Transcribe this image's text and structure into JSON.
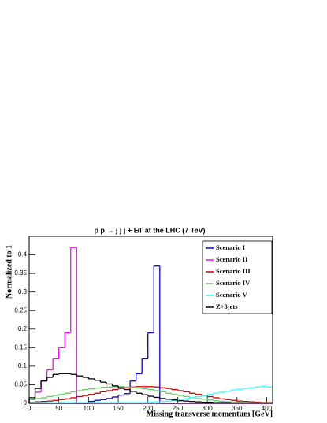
{
  "chart_data": {
    "type": "histogram",
    "title": "p p → j j j + E̸T at the LHC (7 TeV)",
    "x_label": "Missing transverse momentum [GeV]",
    "y_label": "Normalized to 1",
    "bins": [
      0,
      10,
      20,
      30,
      40,
      50,
      60,
      70,
      80,
      90,
      100,
      110,
      120,
      130,
      140,
      150,
      160,
      170,
      180,
      190,
      200,
      210,
      220,
      230,
      240,
      250,
      260,
      270,
      280,
      290,
      300,
      310,
      320,
      330,
      340,
      350,
      360,
      370,
      380,
      390,
      400,
      410
    ],
    "xlim": [
      0,
      410
    ],
    "xticks": [
      0,
      50,
      100,
      150,
      200,
      250,
      300,
      350,
      400
    ],
    "ylim": [
      0,
      0.45
    ],
    "yticks": [
      0,
      0.05,
      0.1,
      0.15,
      0.2,
      0.25,
      0.3,
      0.35,
      0.4
    ],
    "legend": "top-right",
    "series": [
      {
        "name": "Scenario I",
        "color": "#0000cc",
        "values": [
          0,
          0,
          0,
          0,
          0,
          0,
          0,
          0,
          0,
          0,
          0.005,
          0.008,
          0.01,
          0.013,
          0.017,
          0.022,
          0.026,
          0.06,
          0.08,
          0.12,
          0.19,
          0.37,
          0,
          0,
          0,
          0,
          0,
          0,
          0,
          0,
          0,
          0,
          0,
          0,
          0,
          0,
          0,
          0,
          0,
          0,
          0
        ]
      },
      {
        "name": "Scenario II",
        "color": "#ff00ff",
        "values": [
          0.01,
          0.03,
          0.06,
          0.09,
          0.12,
          0.15,
          0.19,
          0.42,
          0,
          0,
          0,
          0,
          0,
          0,
          0,
          0,
          0,
          0,
          0,
          0,
          0,
          0,
          0,
          0,
          0,
          0,
          0,
          0,
          0,
          0,
          0,
          0,
          0,
          0,
          0,
          0,
          0,
          0,
          0,
          0,
          0
        ]
      },
      {
        "name": "Scenario III",
        "color": "#cc0000",
        "values": [
          0.003,
          0.004,
          0.005,
          0.006,
          0.008,
          0.01,
          0.012,
          0.015,
          0.018,
          0.021,
          0.024,
          0.027,
          0.031,
          0.034,
          0.037,
          0.04,
          0.042,
          0.044,
          0.045,
          0.045,
          0.045,
          0.044,
          0.042,
          0.04,
          0.037,
          0.034,
          0.031,
          0.027,
          0.024,
          0.021,
          0.018,
          0.015,
          0.012,
          0.01,
          0.008,
          0.006,
          0.005,
          0.004,
          0.003,
          0.002,
          0.002
        ]
      },
      {
        "name": "Scenario IV",
        "color": "#66cc66",
        "values": [
          0.011,
          0.013,
          0.015,
          0.018,
          0.021,
          0.024,
          0.027,
          0.031,
          0.034,
          0.037,
          0.039,
          0.041,
          0.043,
          0.044,
          0.045,
          0.045,
          0.044,
          0.043,
          0.041,
          0.039,
          0.037,
          0.034,
          0.031,
          0.027,
          0.024,
          0.021,
          0.018,
          0.015,
          0.013,
          0.011,
          0.009,
          0.007,
          0.005,
          0.004,
          0.003,
          0.003,
          0.002,
          0.001,
          0.001,
          0.001,
          0.001
        ]
      },
      {
        "name": "Scenario V",
        "color": "#33ffff",
        "values": [
          0.002,
          0.002,
          0.002,
          0.002,
          0.002,
          0.002,
          0.002,
          0.002,
          0.002,
          0.002,
          0.002,
          0.002,
          0.002,
          0.002,
          0.002,
          0.002,
          0.002,
          0.002,
          0.002,
          0.002,
          0.003,
          0.004,
          0.005,
          0.006,
          0.008,
          0.01,
          0.012,
          0.015,
          0.018,
          0.021,
          0.024,
          0.027,
          0.03,
          0.033,
          0.036,
          0.038,
          0.04,
          0.042,
          0.044,
          0.046,
          0.044
        ]
      },
      {
        "name": "Z+3jets",
        "color": "#000000",
        "values": [
          0.015,
          0.04,
          0.06,
          0.07,
          0.078,
          0.08,
          0.08,
          0.078,
          0.074,
          0.07,
          0.066,
          0.062,
          0.057,
          0.052,
          0.047,
          0.042,
          0.037,
          0.032,
          0.027,
          0.023,
          0.019,
          0.016,
          0.013,
          0.011,
          0.009,
          0.007,
          0.006,
          0.005,
          0.004,
          0.003,
          0.003,
          0.002,
          0.002,
          0.002,
          0.001,
          0.001,
          0.001,
          0.001,
          0.001,
          0.001,
          0.001
        ]
      }
    ]
  }
}
